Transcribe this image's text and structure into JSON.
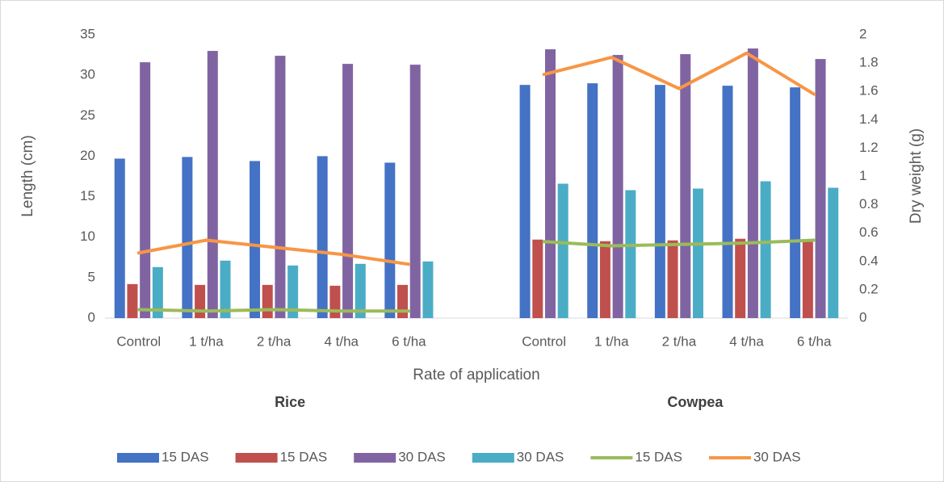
{
  "chart_data": {
    "type": "bar-line",
    "x_label": "Rate of application",
    "y_label": "Length (cm)",
    "y2_label": "Dry weight (g)",
    "categories": [
      "Control",
      "1 t/ha",
      "2 t/ha",
      "4 t/ha",
      "6 t/ha",
      null,
      "Control",
      "1 t/ha",
      "2 t/ha",
      "4 t/ha",
      "6 t/ha"
    ],
    "group_labels": [
      "Rice",
      "Cowpea"
    ],
    "ylim": [
      0,
      35
    ],
    "yticks": [
      0,
      5,
      10,
      15,
      20,
      25,
      30,
      35
    ],
    "y2lim": [
      0,
      2
    ],
    "y2ticks": [
      0,
      0.2,
      0.4,
      0.6,
      0.8,
      1,
      1.2,
      1.4,
      1.6,
      1.8,
      2
    ],
    "series": [
      {
        "name": "15 DAS",
        "type": "bar",
        "color": "#4472c4",
        "values": [
          19.7,
          19.9,
          19.4,
          20.0,
          19.2,
          null,
          28.8,
          29.0,
          28.8,
          28.7,
          28.5
        ]
      },
      {
        "name": "15 DAS",
        "type": "bar",
        "color": "#c0504d",
        "values": [
          4.2,
          4.1,
          4.1,
          4.0,
          4.1,
          null,
          9.7,
          9.5,
          9.6,
          9.8,
          9.6
        ]
      },
      {
        "name": "30 DAS",
        "type": "bar",
        "color": "#8064a2",
        "values": [
          31.6,
          33.0,
          32.4,
          31.4,
          31.3,
          null,
          33.2,
          32.5,
          32.6,
          33.3,
          32.0
        ]
      },
      {
        "name": "30 DAS",
        "type": "bar",
        "color": "#4bacc6",
        "values": [
          6.3,
          7.1,
          6.5,
          6.7,
          7.0,
          null,
          16.6,
          15.8,
          16.0,
          16.9,
          16.1
        ]
      },
      {
        "name": "15 DAS",
        "type": "line",
        "axis": "y2",
        "color": "#9bbb59",
        "values": [
          0.06,
          0.05,
          0.06,
          0.05,
          0.05,
          null,
          0.54,
          0.51,
          0.52,
          0.53,
          0.55
        ]
      },
      {
        "name": "30 DAS",
        "type": "line",
        "axis": "y2",
        "color": "#f79646",
        "values": [
          0.46,
          0.55,
          0.5,
          0.45,
          0.38,
          null,
          1.72,
          1.84,
          1.62,
          1.87,
          1.58
        ]
      }
    ]
  }
}
